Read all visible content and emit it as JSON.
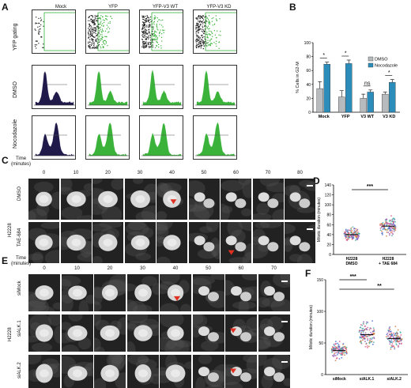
{
  "panels": {
    "A": "A",
    "B": "B",
    "C": "C",
    "D": "D",
    "E": "E",
    "F": "F"
  },
  "panel_a": {
    "columns": [
      "Mock",
      "YFP",
      "YFP-V3 WT",
      "YFP-V3 KD"
    ],
    "rows": [
      "YFP gating",
      "DMSO",
      "Nocodazole"
    ]
  },
  "panel_c": {
    "time_label": "Time\n(minutes)",
    "times": [
      "0",
      "10",
      "20",
      "30",
      "40",
      "50",
      "60",
      "70",
      "80"
    ],
    "cell_line": "H2228",
    "rows": [
      "DMSO",
      "TAE-684"
    ]
  },
  "panel_e": {
    "time_label": "Time\n(minutes)",
    "times": [
      "0",
      "10",
      "20",
      "30",
      "40",
      "50",
      "60",
      "70"
    ],
    "cell_line": "H2228",
    "rows": [
      "siMock",
      "siALK.1",
      "siALK.2"
    ]
  },
  "colors": {
    "dmso": "#b7bbbd",
    "nocodazole": "#2c8dbb",
    "flow_green": "#3bb33b",
    "flow_dark": "#1f1a4a",
    "arrow": "#e03020"
  },
  "chart_data": [
    {
      "panel": "B",
      "type": "bar",
      "ylabel": "% Cells in G2-M",
      "ylim": [
        0,
        100
      ],
      "yticks": [
        "0",
        "20",
        "40",
        "60",
        "80",
        "100"
      ],
      "categories": [
        "Mock",
        "YFP",
        "V3 WT",
        "V3 KD"
      ],
      "series": [
        {
          "name": "DMSO",
          "values": [
            34,
            22,
            20,
            26
          ],
          "errors": [
            10,
            9,
            6,
            3
          ]
        },
        {
          "name": "Nocodazole",
          "values": [
            69,
            70,
            29,
            43
          ],
          "errors": [
            3,
            5,
            3,
            4
          ]
        }
      ],
      "significance": [
        "*",
        "*",
        "ns",
        "*"
      ],
      "legend": "top-right"
    },
    {
      "panel": "D",
      "type": "scatter",
      "ylabel": "Mitotic duration (minutes)",
      "ylim": [
        0,
        140
      ],
      "yticks": [
        "0",
        "20",
        "40",
        "60",
        "80",
        "100",
        "120",
        "140"
      ],
      "categories": [
        "H2228\nDMSO",
        "H2228\n+ TAE 684"
      ],
      "means": [
        40,
        57
      ],
      "significance": "***"
    },
    {
      "panel": "F",
      "type": "scatter",
      "ylabel": "Mitotic duration (minutes)",
      "ylim": [
        0,
        150
      ],
      "yticks": [
        "0",
        "50",
        "100",
        "150"
      ],
      "categories": [
        "siMock",
        "siALK.1",
        "siALK.2"
      ],
      "means": [
        38,
        63,
        57
      ],
      "significance": [
        "***",
        "**"
      ]
    }
  ]
}
